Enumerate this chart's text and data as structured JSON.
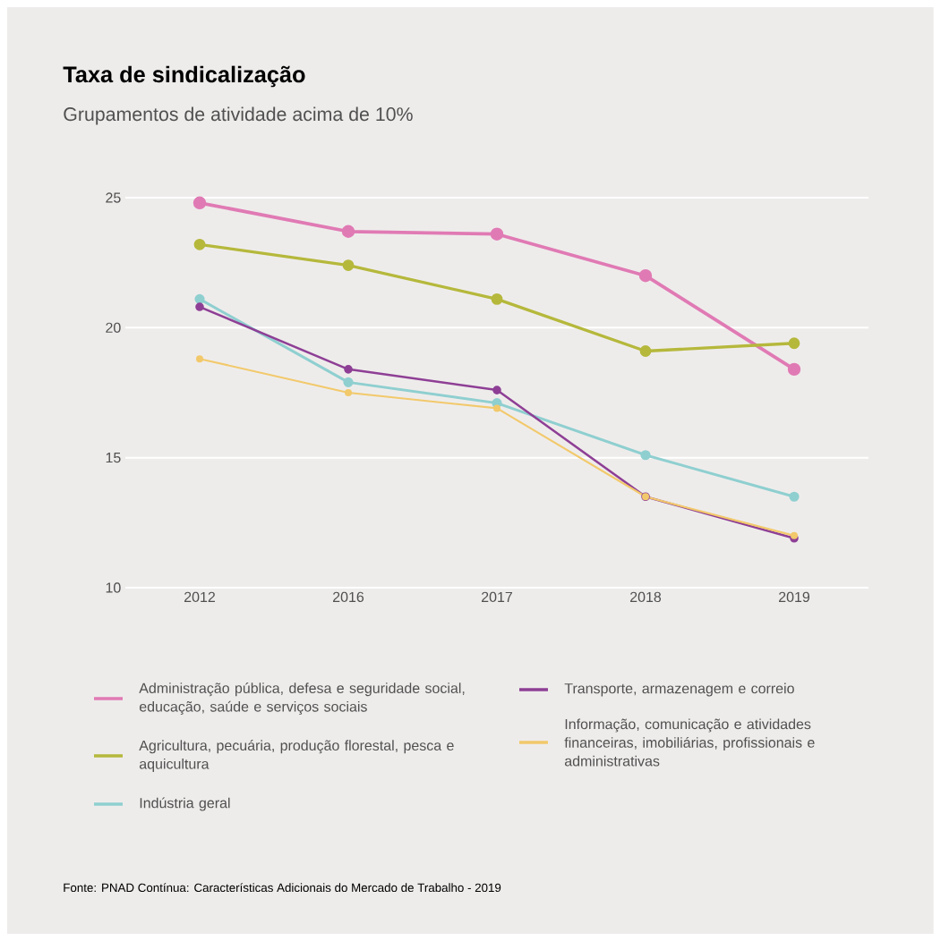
{
  "chart_data": {
    "type": "line",
    "title": "Taxa de sindicalização",
    "subtitle": "Grupamentos de atividade acima de 10%",
    "categories": [
      "2012",
      "2016",
      "2017",
      "2018",
      "2019"
    ],
    "series": [
      {
        "name": "Administração pública, defesa e seguridade social, educação, saúde e serviços sociais",
        "color": "#e07ab4",
        "values": [
          24.8,
          23.7,
          23.6,
          22.0,
          18.4
        ]
      },
      {
        "name": "Agricultura, pecuária, produção florestal, pesca e aquicultura",
        "color": "#b5b83b",
        "values": [
          23.2,
          22.4,
          21.1,
          19.1,
          19.4
        ]
      },
      {
        "name": "Indústria geral",
        "color": "#8fcfd0",
        "values": [
          21.1,
          17.9,
          17.1,
          15.1,
          13.5
        ]
      },
      {
        "name": "Transporte, armazenagem e correio",
        "color": "#8e3f95",
        "values": [
          20.8,
          18.4,
          17.6,
          13.5,
          11.9
        ]
      },
      {
        "name": "Informação, comunicação e atividades financeiras, imobiliárias, profissionais e administrativas",
        "color": "#f2c96b",
        "values": [
          18.8,
          17.5,
          16.9,
          13.5,
          12.0
        ]
      }
    ],
    "ylim": [
      10,
      25
    ],
    "yticks": [
      10,
      15,
      20,
      25
    ],
    "grid": "y",
    "legend": "bottom",
    "marker": "circle",
    "line_style": "solid",
    "annotations": [
      "Fonte: PNAD Contínua: Características Adicionais do Mercado de Trabalho - 2019"
    ]
  }
}
